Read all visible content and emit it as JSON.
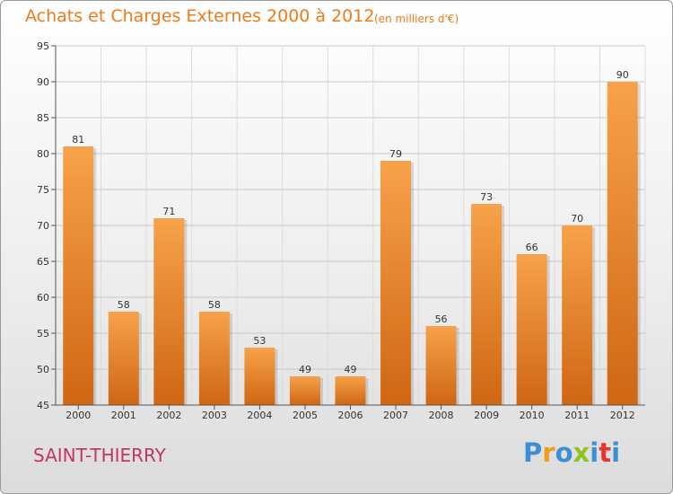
{
  "title": "Achats et Charges Externes 2000 à 2012",
  "subtitle": "(en milliers d'€)",
  "town": "SAINT-THIERRY",
  "logo": {
    "letters": [
      "P",
      "r",
      "o",
      "x",
      "i",
      "t",
      "i"
    ],
    "colors": [
      "#3b8fd4",
      "#f29a1b",
      "#3b8fd4",
      "#8fc31f",
      "#3b8fd4",
      "#e8352b",
      "#3b8fd4"
    ]
  },
  "colors": {
    "bar_top": "#f7a24a",
    "bar_bottom": "#cf6614",
    "title": "#ef7a1a",
    "town": "#c2356b"
  },
  "chart_data": {
    "type": "bar",
    "categories": [
      "2000",
      "2001",
      "2002",
      "2003",
      "2004",
      "2005",
      "2006",
      "2007",
      "2008",
      "2009",
      "2010",
      "2011",
      "2012"
    ],
    "values": [
      81,
      58,
      71,
      58,
      53,
      49,
      49,
      79,
      56,
      73,
      66,
      70,
      90
    ],
    "value_labels": [
      "81",
      "58",
      "71",
      "58",
      "53",
      "49",
      "49",
      "79",
      "56",
      "73",
      "66",
      "70",
      "90"
    ],
    "title": "Achats et Charges Externes 2000 à 2012",
    "xlabel": "",
    "ylabel": "",
    "ylim": [
      45,
      95
    ],
    "yticks": [
      45,
      50,
      55,
      60,
      65,
      70,
      75,
      80,
      85,
      90,
      95
    ],
    "grid": true
  }
}
